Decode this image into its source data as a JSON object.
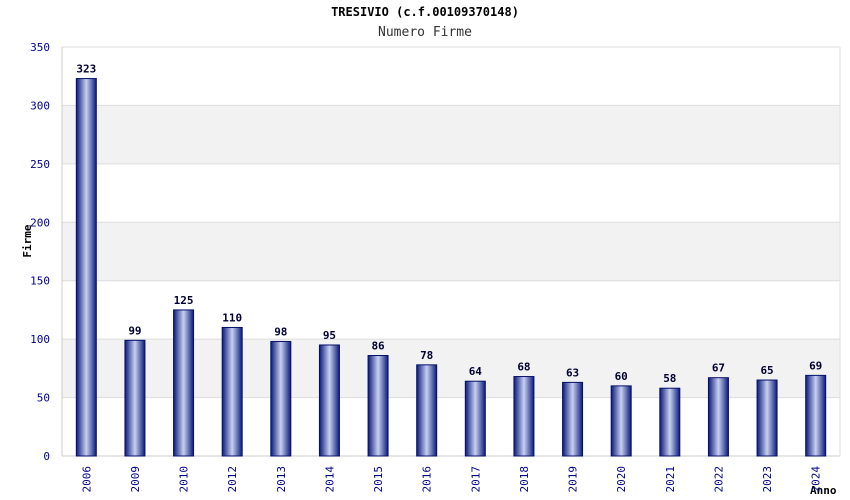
{
  "chart_data": {
    "type": "bar",
    "title": "TRESIVIO (c.f.00109370148)",
    "subtitle": "Numero Firme",
    "xlabel": "Anno",
    "ylabel": "Firme",
    "ylim": [
      0,
      350
    ],
    "yticks": [
      0,
      50,
      100,
      150,
      200,
      250,
      300,
      350
    ],
    "categories": [
      "2006",
      "2009",
      "2010",
      "2012",
      "2013",
      "2014",
      "2015",
      "2016",
      "2017",
      "2018",
      "2019",
      "2020",
      "2021",
      "2022",
      "2023",
      "2024"
    ],
    "values": [
      323,
      99,
      125,
      110,
      98,
      95,
      86,
      78,
      64,
      68,
      63,
      60,
      58,
      67,
      65,
      69
    ],
    "grid": true,
    "colors": {
      "bar_dark": "#0a1a7a",
      "bar_light": "#c8d0f0",
      "tick_label": "#00008b",
      "value_label": "#000033",
      "band": "#f2f2f2",
      "gridline": "#dddddd"
    }
  }
}
